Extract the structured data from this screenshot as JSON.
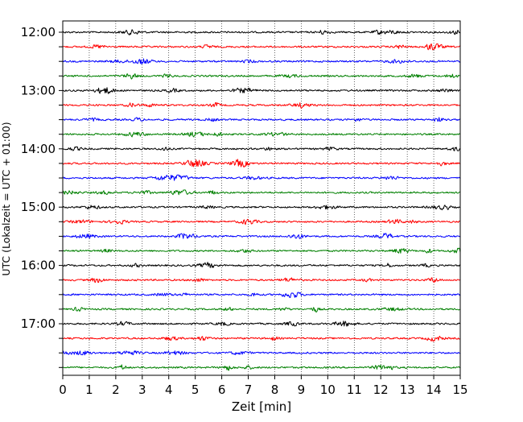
{
  "chart_data": {
    "type": "line",
    "title": "",
    "xlabel": "Zeit  [min]",
    "ylabel": "UTC (Lokalzeit = UTC + 01:00)",
    "xlim": [
      0,
      15
    ],
    "x_ticks": [
      "0",
      "1",
      "2",
      "3",
      "4",
      "5",
      "6",
      "7",
      "8",
      "9",
      "10",
      "11",
      "12",
      "13",
      "14",
      "15"
    ],
    "y_tick_labels": [
      "12:00",
      "13:00",
      "14:00",
      "15:00",
      "16:00",
      "17:00"
    ],
    "x_grid": true,
    "trace_interval_min": 15,
    "traces": [
      {
        "start": "12:00",
        "color": "#000000"
      },
      {
        "start": "12:15",
        "color": "#ff0000"
      },
      {
        "start": "12:30",
        "color": "#0000ff"
      },
      {
        "start": "12:45",
        "color": "#008000"
      },
      {
        "start": "13:00",
        "color": "#000000"
      },
      {
        "start": "13:15",
        "color": "#ff0000"
      },
      {
        "start": "13:30",
        "color": "#0000ff"
      },
      {
        "start": "13:45",
        "color": "#008000"
      },
      {
        "start": "14:00",
        "color": "#000000"
      },
      {
        "start": "14:15",
        "color": "#ff0000"
      },
      {
        "start": "14:30",
        "color": "#0000ff"
      },
      {
        "start": "14:45",
        "color": "#008000"
      },
      {
        "start": "15:00",
        "color": "#000000"
      },
      {
        "start": "15:15",
        "color": "#ff0000"
      },
      {
        "start": "15:30",
        "color": "#0000ff"
      },
      {
        "start": "15:45",
        "color": "#008000"
      },
      {
        "start": "16:00",
        "color": "#000000"
      },
      {
        "start": "16:15",
        "color": "#ff0000"
      },
      {
        "start": "16:30",
        "color": "#0000ff"
      },
      {
        "start": "16:45",
        "color": "#008000"
      },
      {
        "start": "17:00",
        "color": "#000000"
      },
      {
        "start": "17:15",
        "color": "#ff0000"
      },
      {
        "start": "17:30",
        "color": "#0000ff"
      },
      {
        "start": "17:45",
        "color": "#008000"
      }
    ]
  }
}
